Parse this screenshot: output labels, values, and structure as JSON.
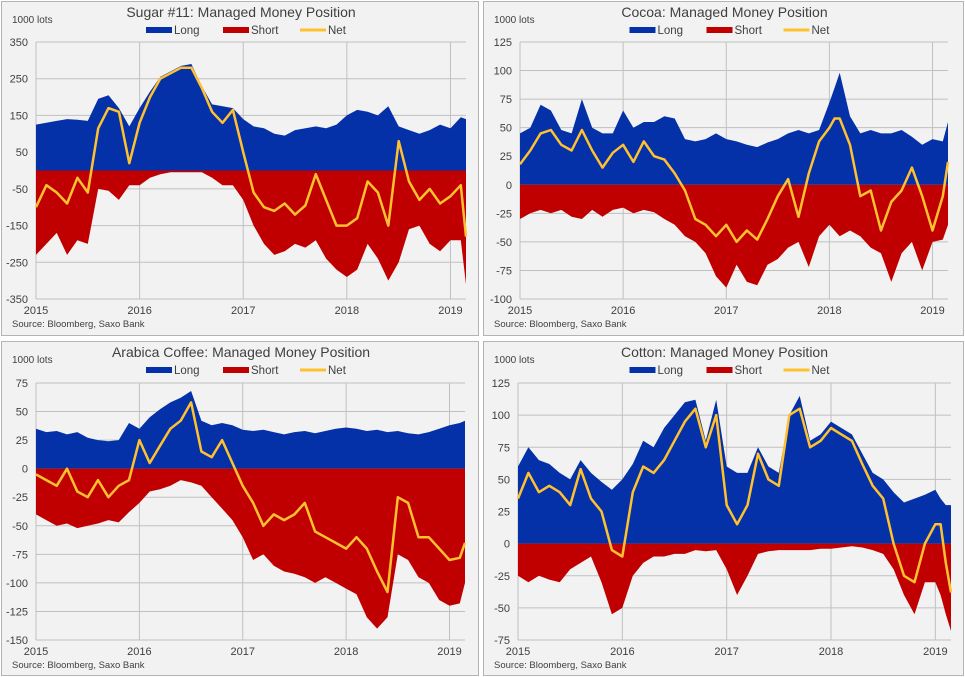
{
  "colors": {
    "long": "#0430a8",
    "short": "#c00000",
    "net": "#ffc130",
    "grid": "#c0c0c0",
    "background": "#f2f2f2"
  },
  "chart_data": [
    {
      "type": "area",
      "title": "Sugar #11: Managed Money Position",
      "unit_label": "1000 lots",
      "source": "Source: Bloomberg, Saxo Bank",
      "legend": [
        "Long",
        "Short",
        "Net"
      ],
      "legend_position": "top-center",
      "grid": true,
      "xlim": [
        2015.0,
        2019.15
      ],
      "ylim": [
        -350,
        350
      ],
      "yticks": [
        350,
        250,
        150,
        50,
        -50,
        -150,
        -250,
        -350
      ],
      "ytick_labels": [
        "350",
        "250",
        "150",
        "50",
        "-50",
        "-150",
        "-250",
        "-350"
      ],
      "xticks": [
        2015,
        2016,
        2017,
        2018,
        2019
      ],
      "xtick_labels": [
        "2015",
        "2016",
        "2017",
        "2018",
        "2019"
      ],
      "x": [
        2015.0,
        2015.1,
        2015.2,
        2015.3,
        2015.4,
        2015.5,
        2015.6,
        2015.7,
        2015.8,
        2015.9,
        2016.0,
        2016.1,
        2016.2,
        2016.3,
        2016.4,
        2016.5,
        2016.6,
        2016.7,
        2016.8,
        2016.9,
        2017.0,
        2017.1,
        2017.2,
        2017.3,
        2017.4,
        2017.5,
        2017.6,
        2017.7,
        2017.8,
        2017.9,
        2018.0,
        2018.1,
        2018.2,
        2018.3,
        2018.4,
        2018.5,
        2018.6,
        2018.7,
        2018.8,
        2018.9,
        2019.0,
        2019.1,
        2019.15
      ],
      "series": [
        {
          "name": "Long",
          "values": [
            125,
            130,
            135,
            140,
            138,
            135,
            195,
            205,
            170,
            120,
            170,
            215,
            255,
            270,
            285,
            290,
            230,
            180,
            175,
            170,
            140,
            120,
            115,
            100,
            95,
            110,
            115,
            120,
            115,
            125,
            150,
            165,
            160,
            150,
            175,
            120,
            110,
            100,
            110,
            125,
            115,
            145,
            140
          ]
        },
        {
          "name": "Short",
          "values": [
            -230,
            -200,
            -170,
            -230,
            -190,
            -200,
            -50,
            -55,
            -80,
            -40,
            -40,
            -20,
            -10,
            -5,
            -5,
            -5,
            -5,
            -20,
            -40,
            -40,
            -80,
            -150,
            -200,
            -230,
            -220,
            -200,
            -210,
            -190,
            -240,
            -270,
            -290,
            -270,
            -200,
            -240,
            -300,
            -250,
            -160,
            -150,
            -200,
            -220,
            -190,
            -190,
            -310
          ]
        },
        {
          "name": "Net",
          "values": [
            -100,
            -40,
            -60,
            -90,
            -20,
            -60,
            115,
            170,
            160,
            20,
            130,
            200,
            250,
            265,
            280,
            280,
            225,
            160,
            130,
            165,
            50,
            -60,
            -100,
            -110,
            -90,
            -120,
            -95,
            -10,
            -80,
            -150,
            -150,
            -130,
            -30,
            -60,
            -150,
            80,
            -30,
            -80,
            -50,
            -90,
            -70,
            -40,
            -180
          ]
        }
      ]
    },
    {
      "type": "area",
      "title": "Cocoa: Managed Money Position",
      "unit_label": "1000 lots",
      "source": "Source: Bloomberg, Saxo Bank",
      "legend": [
        "Long",
        "Short",
        "Net"
      ],
      "legend_position": "top-center",
      "grid": true,
      "xlim": [
        2015.0,
        2019.15
      ],
      "ylim": [
        -100,
        125
      ],
      "yticks": [
        125,
        100,
        75,
        50,
        25,
        0,
        -25,
        -50,
        -75,
        -100
      ],
      "ytick_labels": [
        "125",
        "100",
        "75",
        "50",
        "25",
        "0",
        "-25",
        "-50",
        "-75",
        "-100"
      ],
      "xticks": [
        2015,
        2016,
        2017,
        2018,
        2019
      ],
      "xtick_labels": [
        "2015",
        "2016",
        "2017",
        "2018",
        "2019"
      ],
      "x": [
        2015.0,
        2015.1,
        2015.2,
        2015.3,
        2015.4,
        2015.5,
        2015.6,
        2015.7,
        2015.8,
        2015.9,
        2016.0,
        2016.1,
        2016.2,
        2016.3,
        2016.4,
        2016.5,
        2016.6,
        2016.7,
        2016.8,
        2016.9,
        2017.0,
        2017.1,
        2017.2,
        2017.3,
        2017.4,
        2017.5,
        2017.6,
        2017.7,
        2017.8,
        2017.9,
        2018.0,
        2018.05,
        2018.1,
        2018.2,
        2018.3,
        2018.4,
        2018.5,
        2018.6,
        2018.7,
        2018.8,
        2018.9,
        2019.0,
        2019.1,
        2019.15
      ],
      "series": [
        {
          "name": "Long",
          "values": [
            45,
            50,
            70,
            65,
            48,
            45,
            75,
            50,
            45,
            45,
            65,
            50,
            55,
            55,
            60,
            58,
            40,
            38,
            40,
            45,
            40,
            38,
            35,
            33,
            37,
            40,
            45,
            48,
            45,
            48,
            72,
            85,
            98,
            60,
            45,
            48,
            45,
            45,
            48,
            42,
            35,
            40,
            38,
            55
          ]
        },
        {
          "name": "Short",
          "values": [
            -30,
            -25,
            -22,
            -25,
            -22,
            -28,
            -30,
            -22,
            -28,
            -22,
            -20,
            -25,
            -22,
            -24,
            -30,
            -35,
            -45,
            -50,
            -60,
            -80,
            -90,
            -70,
            -85,
            -88,
            -70,
            -65,
            -55,
            -50,
            -72,
            -45,
            -35,
            -40,
            -45,
            -40,
            -45,
            -55,
            -60,
            -85,
            -60,
            -50,
            -75,
            -50,
            -48,
            -35
          ]
        },
        {
          "name": "Net",
          "values": [
            18,
            30,
            45,
            48,
            35,
            30,
            48,
            30,
            15,
            28,
            35,
            20,
            38,
            25,
            22,
            10,
            -5,
            -30,
            -35,
            -45,
            -35,
            -50,
            -40,
            -48,
            -30,
            -10,
            5,
            -28,
            10,
            38,
            50,
            58,
            58,
            35,
            -10,
            -5,
            -40,
            -15,
            -5,
            15,
            -10,
            -40,
            -10,
            20
          ]
        }
      ]
    },
    {
      "type": "area",
      "title": "Arabica Coffee: Managed Money Position",
      "unit_label": "1000 lots",
      "source": "Source: Bloomberg, Saxo Bank",
      "legend": [
        "Long",
        "Short",
        "Net"
      ],
      "legend_position": "top-center",
      "grid": true,
      "xlim": [
        2015.0,
        2019.15
      ],
      "ylim": [
        -150,
        75
      ],
      "yticks": [
        75,
        50,
        25,
        0,
        -25,
        -50,
        -75,
        -100,
        -125,
        -150
      ],
      "ytick_labels": [
        "75",
        "50",
        "25",
        "0",
        "-25",
        "-50",
        "-75",
        "-100",
        "-125",
        "-150"
      ],
      "xticks": [
        2015,
        2016,
        2017,
        2018,
        2019
      ],
      "xtick_labels": [
        "2015",
        "2016",
        "2017",
        "2018",
        "2019"
      ],
      "x": [
        2015.0,
        2015.1,
        2015.2,
        2015.3,
        2015.4,
        2015.5,
        2015.6,
        2015.7,
        2015.8,
        2015.9,
        2016.0,
        2016.1,
        2016.2,
        2016.3,
        2016.4,
        2016.5,
        2016.6,
        2016.7,
        2016.8,
        2016.9,
        2017.0,
        2017.1,
        2017.2,
        2017.3,
        2017.4,
        2017.5,
        2017.6,
        2017.7,
        2017.8,
        2017.9,
        2018.0,
        2018.1,
        2018.2,
        2018.3,
        2018.4,
        2018.5,
        2018.6,
        2018.7,
        2018.8,
        2018.9,
        2019.0,
        2019.1,
        2019.15
      ],
      "series": [
        {
          "name": "Long",
          "values": [
            35,
            32,
            33,
            30,
            32,
            27,
            25,
            24,
            25,
            40,
            35,
            45,
            52,
            58,
            62,
            68,
            42,
            38,
            40,
            38,
            34,
            33,
            34,
            32,
            30,
            32,
            33,
            31,
            33,
            35,
            36,
            35,
            33,
            34,
            32,
            33,
            31,
            30,
            32,
            35,
            38,
            40,
            42
          ]
        },
        {
          "name": "Short",
          "values": [
            -40,
            -45,
            -50,
            -48,
            -52,
            -50,
            -48,
            -45,
            -47,
            -38,
            -30,
            -20,
            -18,
            -15,
            -10,
            -12,
            -15,
            -25,
            -35,
            -45,
            -60,
            -80,
            -75,
            -85,
            -90,
            -92,
            -95,
            -100,
            -95,
            -100,
            -105,
            -110,
            -130,
            -140,
            -130,
            -75,
            -80,
            -95,
            -100,
            -115,
            -120,
            -118,
            -100
          ]
        },
        {
          "name": "Net",
          "values": [
            -5,
            -10,
            -15,
            0,
            -20,
            -25,
            -10,
            -25,
            -15,
            -10,
            25,
            5,
            20,
            35,
            42,
            58,
            15,
            10,
            25,
            5,
            -15,
            -30,
            -50,
            -40,
            -45,
            -40,
            -30,
            -55,
            -60,
            -65,
            -70,
            -60,
            -70,
            -90,
            -108,
            -25,
            -30,
            -60,
            -60,
            -70,
            -80,
            -78,
            -65
          ]
        }
      ]
    },
    {
      "type": "area",
      "title": "Cotton: Managed Money Position",
      "unit_label": "1000 lots",
      "source": "Source: Bloomberg, Saxo Bank",
      "legend": [
        "Long",
        "Short",
        "Net"
      ],
      "legend_position": "top-center",
      "grid": true,
      "xlim": [
        2015.0,
        2019.15
      ],
      "ylim": [
        -75,
        125
      ],
      "yticks": [
        125,
        100,
        75,
        50,
        25,
        0,
        -25,
        -50,
        -75
      ],
      "ytick_labels": [
        "125",
        "100",
        "75",
        "50",
        "25",
        "0",
        "-25",
        "-50",
        "-75"
      ],
      "xticks": [
        2015,
        2016,
        2017,
        2018,
        2019
      ],
      "xtick_labels": [
        "2015",
        "2016",
        "2017",
        "2018",
        "2019"
      ],
      "x": [
        2015.0,
        2015.1,
        2015.2,
        2015.3,
        2015.4,
        2015.5,
        2015.6,
        2015.7,
        2015.8,
        2015.9,
        2016.0,
        2016.1,
        2016.2,
        2016.3,
        2016.4,
        2016.5,
        2016.6,
        2016.7,
        2016.8,
        2016.9,
        2017.0,
        2017.1,
        2017.2,
        2017.3,
        2017.4,
        2017.5,
        2017.6,
        2017.7,
        2017.8,
        2017.9,
        2018.0,
        2018.1,
        2018.2,
        2018.3,
        2018.4,
        2018.5,
        2018.6,
        2018.7,
        2018.8,
        2018.9,
        2019.0,
        2019.05,
        2019.1,
        2019.15
      ],
      "series": [
        {
          "name": "Long",
          "values": [
            60,
            75,
            65,
            62,
            55,
            50,
            65,
            55,
            48,
            42,
            50,
            62,
            80,
            75,
            90,
            100,
            110,
            112,
            80,
            112,
            60,
            55,
            55,
            75,
            60,
            55,
            100,
            115,
            80,
            85,
            95,
            90,
            85,
            70,
            55,
            50,
            40,
            32,
            35,
            38,
            42,
            35,
            30,
            30
          ]
        },
        {
          "name": "Short",
          "values": [
            -25,
            -30,
            -25,
            -28,
            -30,
            -20,
            -15,
            -10,
            -30,
            -55,
            -50,
            -25,
            -15,
            -10,
            -10,
            -8,
            -8,
            -5,
            -6,
            -5,
            -20,
            -40,
            -25,
            -8,
            -6,
            -5,
            -5,
            -5,
            -5,
            -4,
            -4,
            -3,
            -2,
            -3,
            -5,
            -8,
            -20,
            -40,
            -55,
            -30,
            -30,
            -40,
            -55,
            -68
          ]
        },
        {
          "name": "Net",
          "values": [
            35,
            55,
            40,
            45,
            40,
            30,
            58,
            35,
            25,
            -5,
            -10,
            40,
            60,
            55,
            65,
            80,
            95,
            105,
            75,
            100,
            30,
            15,
            30,
            70,
            50,
            45,
            100,
            105,
            75,
            80,
            90,
            85,
            80,
            62,
            45,
            35,
            0,
            -25,
            -30,
            0,
            15,
            15,
            -15,
            -38
          ]
        }
      ]
    }
  ]
}
